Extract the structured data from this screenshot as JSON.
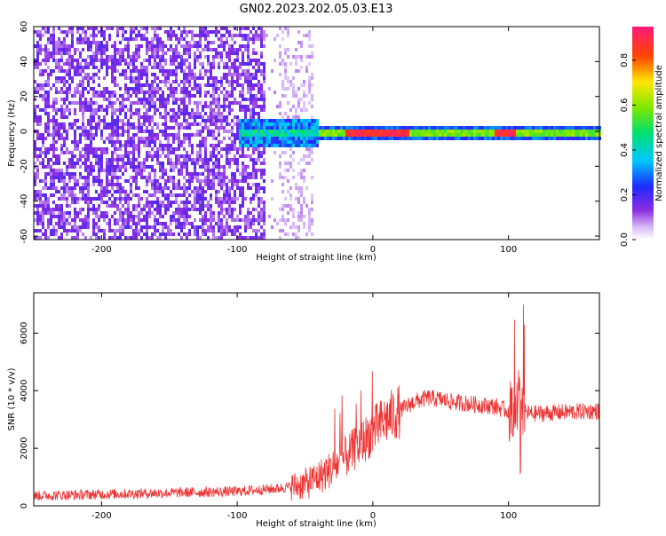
{
  "title": "GN02.2023.202.05.03.E13",
  "colors": {
    "frame": "#000000",
    "snr_line": "#ee3333",
    "spectrogram_purple": "#7a1cf2",
    "spectrogram_light": "#d9bdf7"
  },
  "chart_data": [
    {
      "type": "heatmap",
      "title": "GN02.2023.202.05.03.E13",
      "xlabel": "Height of straight line (km)",
      "ylabel": "Frequency (Hz)",
      "xlim": [
        -250,
        167
      ],
      "ylim": [
        -62,
        60
      ],
      "xticks": [
        -200,
        -100,
        0,
        100
      ],
      "yticks": [
        -60,
        -40,
        -20,
        0,
        20,
        40,
        60
      ],
      "colorbar": {
        "label": "Normalized spectral amplitude",
        "range": [
          0.0,
          0.95
        ],
        "ticks": [
          0.0,
          0.2,
          0.4,
          0.6,
          0.8
        ],
        "colormap": "rainbow"
      },
      "regions": [
        {
          "x_range": [
            -250,
            -80
          ],
          "freq_range": [
            -62,
            60
          ],
          "amplitude": 0.15,
          "pattern": "noise"
        },
        {
          "x_range": [
            -80,
            -45
          ],
          "freq_range": [
            -62,
            60
          ],
          "amplitude": 0.05,
          "pattern": "sparse noise"
        },
        {
          "x_range": [
            -100,
            -40
          ],
          "freq_range": [
            -8,
            8
          ],
          "amplitude": 0.4,
          "pattern": "signal onset"
        },
        {
          "x_range": [
            -40,
            167
          ],
          "freq_range": [
            -6,
            6
          ],
          "amplitude": 0.4,
          "pattern": "signal band"
        },
        {
          "x_range": [
            -20,
            25
          ],
          "freq_range": [
            -1,
            1
          ],
          "amplitude": 0.9,
          "pattern": "peak core"
        },
        {
          "x_range": [
            88,
            102
          ],
          "freq_range": [
            -1,
            1
          ],
          "amplitude": 0.9,
          "pattern": "peak core"
        }
      ],
      "grid": false
    },
    {
      "type": "line",
      "xlabel": "Height of straight line (km)",
      "ylabel": "SNR (10 * v/v)",
      "xlim": [
        -250,
        167
      ],
      "ylim": [
        0,
        7400
      ],
      "xticks": [
        -200,
        -100,
        0,
        100
      ],
      "yticks": [
        0,
        2000,
        4000,
        6000
      ],
      "series": [
        {
          "x": [
            -250,
            -200,
            -150,
            -100,
            -70,
            -50,
            -40,
            -30,
            -20,
            -10,
            0,
            10,
            20,
            30,
            40,
            50,
            60,
            70,
            80,
            90,
            100,
            105,
            108,
            110,
            115,
            120,
            140,
            167
          ],
          "y": [
            350,
            400,
            450,
            500,
            600,
            750,
            1000,
            1300,
            1700,
            2100,
            2600,
            3000,
            3300,
            3600,
            3750,
            3700,
            3600,
            3550,
            3500,
            3450,
            3300,
            3500,
            3800,
            3300,
            3200,
            3200,
            3250,
            3300
          ]
        }
      ],
      "grid": false
    }
  ]
}
